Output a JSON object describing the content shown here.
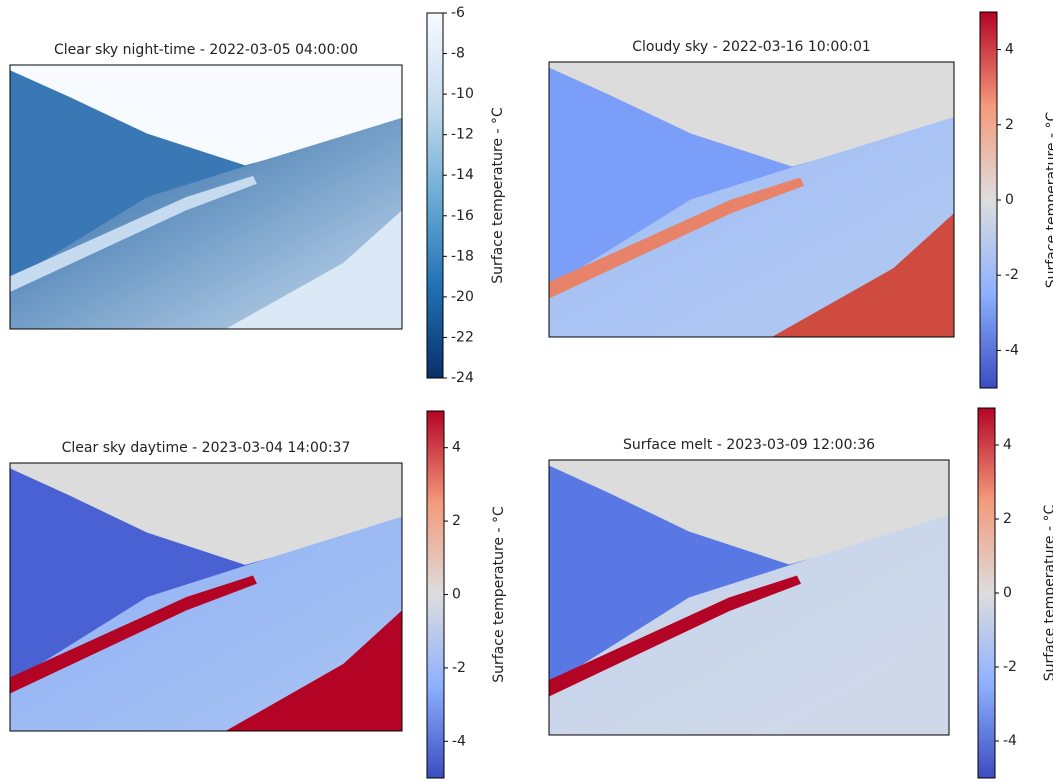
{
  "chart_data": [
    {
      "type": "image",
      "title": "Clear sky night-time - 2022-03-05 04:00:00",
      "colorbar": {
        "label": "Surface temperature - °C",
        "lim": [
          -24,
          -6
        ],
        "ticks": [
          -24,
          -22,
          -20,
          -18,
          -16,
          -14,
          -12,
          -10,
          -8,
          -6
        ],
        "colormap": [
          "#08306b",
          "#2171b5",
          "#6baed6",
          "#c6dbef",
          "#f7fbff"
        ]
      }
    },
    {
      "type": "image",
      "title": "Cloudy sky - 2022-03-16 10:00:01",
      "colorbar": {
        "label": "Surface temperature - °C",
        "lim": [
          -5,
          5
        ],
        "ticks": [
          -4,
          -2,
          0,
          2,
          4
        ],
        "colormap": [
          "#3b4cc0",
          "#8db0fe",
          "#dddddd",
          "#f49a7b",
          "#b40426"
        ]
      }
    },
    {
      "type": "image",
      "title": "Clear sky daytime - 2023-03-04 14:00:37",
      "colorbar": {
        "label": "Surface temperature - °C",
        "lim": [
          -5,
          5
        ],
        "ticks": [
          -4,
          -2,
          0,
          2,
          4
        ],
        "colormap": [
          "#3b4cc0",
          "#8db0fe",
          "#dddddd",
          "#f49a7b",
          "#b40426"
        ]
      }
    },
    {
      "type": "image",
      "title": "Surface melt - 2023-03-09 12:00:36",
      "colorbar": {
        "label": "Surface temperature - °C",
        "lim": [
          -5,
          5
        ],
        "ticks": [
          -4,
          -2,
          0,
          2,
          4
        ],
        "colormap": [
          "#3b4cc0",
          "#8db0fe",
          "#dddddd",
          "#f49a7b",
          "#b40426"
        ]
      }
    }
  ]
}
